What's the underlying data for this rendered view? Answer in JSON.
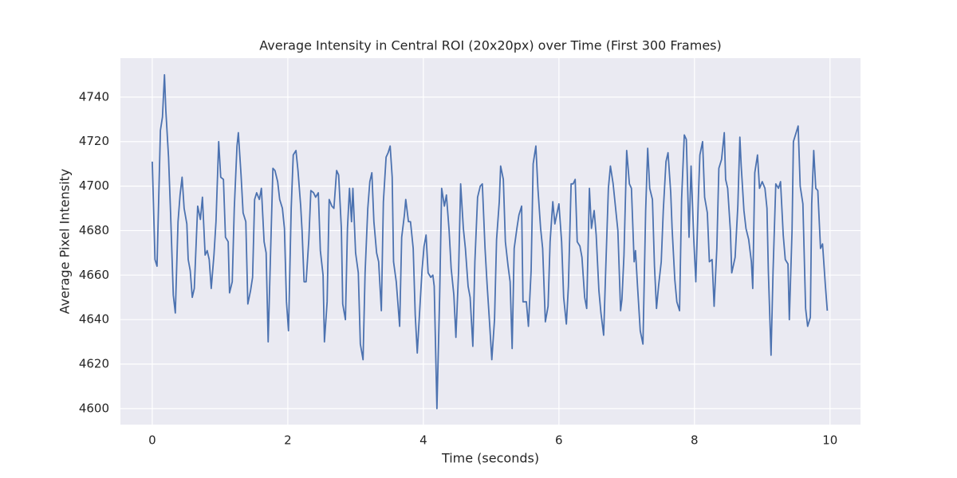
{
  "chart_data": {
    "type": "line",
    "title": "Average Intensity in Central ROI (20x20px) over Time (First 300 Frames)",
    "xlabel": "Time (seconds)",
    "ylabel": "Average Pixel Intensity",
    "xlim": [
      -0.47,
      10.45
    ],
    "ylim": [
      4592.8,
      4757.5
    ],
    "xticks": [
      0,
      2,
      4,
      6,
      8,
      10
    ],
    "yticks": [
      4600,
      4620,
      4640,
      4660,
      4680,
      4700,
      4720,
      4740
    ],
    "grid": true,
    "background": "#eaeaf2",
    "x": [
      0,
      0.04,
      0.07,
      0.12,
      0.15,
      0.18,
      0.2,
      0.24,
      0.27,
      0.31,
      0.34,
      0.38,
      0.41,
      0.44,
      0.47,
      0.51,
      0.53,
      0.56,
      0.59,
      0.62,
      0.67,
      0.71,
      0.74,
      0.78,
      0.81,
      0.84,
      0.87,
      0.91,
      0.94,
      0.98,
      1.01,
      1.05,
      1.08,
      1.12,
      1.14,
      1.18,
      1.21,
      1.25,
      1.27,
      1.31,
      1.34,
      1.38,
      1.41,
      1.45,
      1.48,
      1.51,
      1.54,
      1.58,
      1.61,
      1.65,
      1.68,
      1.71,
      1.74,
      1.78,
      1.81,
      1.85,
      1.88,
      1.92,
      1.95,
      1.98,
      2.01,
      2.05,
      2.08,
      2.12,
      2.15,
      2.19,
      2.21,
      2.24,
      2.27,
      2.31,
      2.34,
      2.38,
      2.41,
      2.45,
      2.48,
      2.52,
      2.54,
      2.58,
      2.61,
      2.65,
      2.68,
      2.72,
      2.75,
      2.79,
      2.81,
      2.85,
      2.88,
      2.91,
      2.94,
      2.96,
      3.0,
      3.04,
      3.07,
      3.11,
      3.14,
      3.18,
      3.21,
      3.24,
      3.27,
      3.31,
      3.34,
      3.38,
      3.41,
      3.45,
      3.48,
      3.51,
      3.54,
      3.56,
      3.6,
      3.65,
      3.68,
      3.72,
      3.74,
      3.78,
      3.81,
      3.85,
      3.88,
      3.91,
      3.94,
      3.98,
      4.01,
      4.04,
      4.07,
      4.11,
      4.14,
      4.16,
      4.2,
      4.24,
      4.27,
      4.31,
      4.34,
      4.38,
      4.41,
      4.45,
      4.48,
      4.52,
      4.55,
      4.59,
      4.62,
      4.66,
      4.69,
      4.73,
      4.76,
      4.8,
      4.84,
      4.87,
      4.91,
      4.94,
      4.98,
      5.01,
      5.05,
      5.08,
      5.12,
      5.14,
      5.18,
      5.21,
      5.25,
      5.28,
      5.31,
      5.34,
      5.38,
      5.41,
      5.45,
      5.47,
      5.52,
      5.55,
      5.59,
      5.62,
      5.66,
      5.69,
      5.73,
      5.76,
      5.8,
      5.84,
      5.87,
      5.91,
      5.94,
      5.98,
      6.0,
      6.04,
      6.07,
      6.11,
      6.14,
      6.18,
      6.21,
      6.24,
      6.27,
      6.31,
      6.34,
      6.38,
      6.41,
      6.45,
      6.48,
      6.52,
      6.55,
      6.59,
      6.62,
      6.66,
      6.69,
      6.73,
      6.76,
      6.8,
      6.84,
      6.87,
      6.91,
      6.93,
      6.96,
      7.0,
      7.04,
      7.07,
      7.11,
      7.13,
      7.16,
      7.2,
      7.24,
      7.28,
      7.31,
      7.34,
      7.38,
      7.41,
      7.44,
      7.47,
      7.51,
      7.54,
      7.58,
      7.61,
      7.65,
      7.67,
      7.71,
      7.74,
      7.78,
      7.81,
      7.85,
      7.88,
      7.92,
      7.95,
      7.99,
      8.02,
      8.06,
      8.08,
      8.12,
      8.15,
      8.19,
      8.22,
      8.26,
      8.29,
      8.33,
      8.36,
      8.4,
      8.44,
      8.46,
      8.49,
      8.53,
      8.55,
      8.6,
      8.64,
      8.67,
      8.69,
      8.73,
      8.76,
      8.8,
      8.84,
      8.86,
      8.89,
      8.93,
      8.96,
      9.0,
      9.04,
      9.07,
      9.09,
      9.13,
      9.16,
      9.2,
      9.24,
      9.27,
      9.31,
      9.34,
      9.38,
      9.4,
      9.44,
      9.46,
      9.49,
      9.53,
      9.56,
      9.6,
      9.64,
      9.67,
      9.71,
      9.73,
      9.76,
      9.79,
      9.82,
      9.86,
      9.89,
      9.93,
      9.96
    ],
    "series": [
      {
        "color": "#4c72b0",
        "values": [
          4711,
          4667,
          4664,
          4725,
          4731,
          4750,
          4734,
          4713,
          4688,
          4651,
          4643,
          4684,
          4696,
          4704,
          4690,
          4683,
          4667,
          4662,
          4650,
          4654,
          4691,
          4685,
          4695,
          4669,
          4671,
          4667,
          4654,
          4669,
          4684,
          4720,
          4704,
          4703,
          4677,
          4675,
          4652,
          4657,
          4690,
          4718,
          4724,
          4705,
          4688,
          4684,
          4647,
          4653,
          4659,
          4694,
          4697,
          4694,
          4699,
          4675,
          4670,
          4630,
          4664,
          4708,
          4707,
          4702,
          4694,
          4690,
          4681,
          4648,
          4635,
          4690,
          4714,
          4716,
          4707,
          4691,
          4680,
          4657,
          4657,
          4676,
          4698,
          4697,
          4695,
          4697,
          4671,
          4660,
          4630,
          4648,
          4694,
          4691,
          4690,
          4707,
          4705,
          4681,
          4647,
          4640,
          4681,
          4699,
          4684,
          4699,
          4670,
          4661,
          4629,
          4622,
          4661,
          4690,
          4702,
          4706,
          4684,
          4670,
          4666,
          4644,
          4693,
          4713,
          4715,
          4718,
          4704,
          4666,
          4657,
          4637,
          4677,
          4687,
          4694,
          4684,
          4684,
          4672,
          4642,
          4625,
          4641,
          4662,
          4673,
          4678,
          4661,
          4659,
          4660,
          4655,
          4600,
          4650,
          4699,
          4691,
          4696,
          4680,
          4663,
          4651,
          4632,
          4662,
          4701,
          4681,
          4672,
          4655,
          4650,
          4628,
          4666,
          4695,
          4700,
          4701,
          4672,
          4656,
          4637,
          4622,
          4640,
          4676,
          4693,
          4709,
          4703,
          4675,
          4664,
          4657,
          4627,
          4672,
          4681,
          4687,
          4691,
          4648,
          4648,
          4637,
          4662,
          4710,
          4718,
          4699,
          4681,
          4672,
          4639,
          4646,
          4675,
          4693,
          4683,
          4689,
          4692,
          4675,
          4650,
          4638,
          4655,
          4701,
          4701,
          4703,
          4675,
          4673,
          4668,
          4650,
          4645,
          4699,
          4681,
          4689,
          4678,
          4653,
          4643,
          4633,
          4662,
          4699,
          4709,
          4701,
          4689,
          4680,
          4644,
          4649,
          4669,
          4716,
          4701,
          4699,
          4666,
          4671,
          4655,
          4635,
          4629,
          4689,
          4717,
          4699,
          4694,
          4664,
          4645,
          4655,
          4666,
          4689,
          4711,
          4715,
          4697,
          4681,
          4658,
          4648,
          4644,
          4694,
          4723,
          4721,
          4677,
          4709,
          4676,
          4657,
          4697,
          4714,
          4720,
          4695,
          4688,
          4666,
          4667,
          4646,
          4672,
          4708,
          4712,
          4724,
          4703,
          4699,
          4680,
          4661,
          4668,
          4691,
          4722,
          4709,
          4689,
          4681,
          4676,
          4666,
          4654,
          4706,
          4714,
          4699,
          4702,
          4699,
          4690,
          4662,
          4624,
          4662,
          4701,
          4699,
          4702,
          4678,
          4667,
          4665,
          4640,
          4680,
          4720,
          4723,
          4727,
          4700,
          4692,
          4645,
          4637,
          4641,
          4692,
          4716,
          4699,
          4698,
          4672,
          4674,
          4656,
          4644
        ]
      }
    ]
  }
}
